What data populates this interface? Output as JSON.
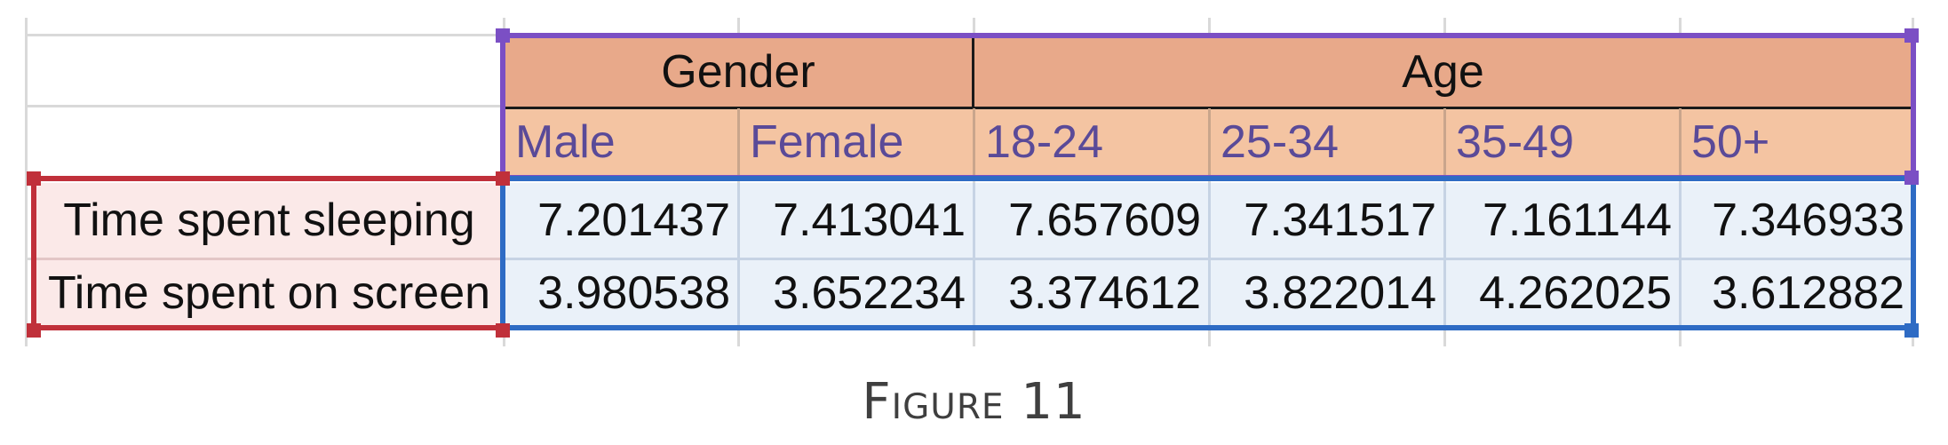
{
  "table": {
    "group_headers": [
      "Gender",
      "Age"
    ],
    "columns": [
      "Male",
      "Female",
      "18-24",
      "25-34",
      "35-49",
      "50+"
    ],
    "rows": [
      {
        "label": "Time spent sleeping",
        "values": [
          "7.201437",
          "7.413041",
          "7.657609",
          "7.341517",
          "7.161144",
          "7.346933"
        ]
      },
      {
        "label": "Time spent on screen",
        "values": [
          "3.980538",
          "3.652234",
          "3.374612",
          "3.822014",
          "4.262025",
          "3.612882"
        ]
      }
    ]
  },
  "caption": "Figure 11",
  "colors": {
    "header_top": "#e8a98a",
    "header_sub": "#f4c4a2",
    "row_labels": "#fbe9e8",
    "values": "#eaf1f9",
    "column_header_text": "#5a4a98",
    "range_purple": "#7b4fc4",
    "range_red": "#c0303a",
    "range_blue": "#2e6bc4"
  }
}
